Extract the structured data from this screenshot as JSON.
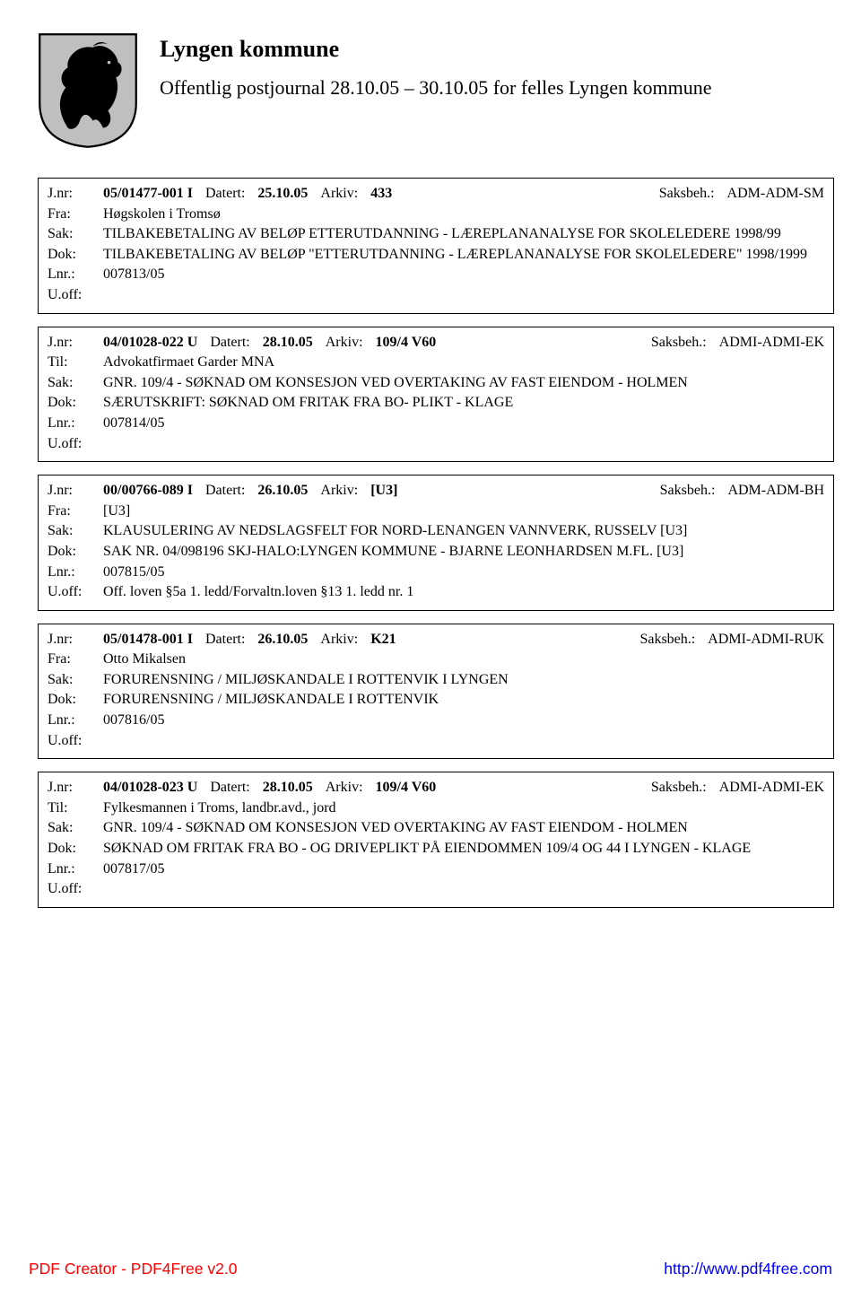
{
  "header": {
    "title": "Lyngen kommune",
    "subtitle": "Offentlig postjournal 28.10.05 – 30.10.05 for felles Lyngen kommune"
  },
  "labels": {
    "jnr": "J.nr:",
    "datert": "Datert:",
    "arkiv": "Arkiv:",
    "saksbeh": "Saksbeh.:",
    "fra": "Fra:",
    "til": "Til:",
    "sak": "Sak:",
    "dok": "Dok:",
    "lnr": "Lnr.:",
    "uoff": "U.off:"
  },
  "entries": [
    {
      "jnr": "05/01477-001 I",
      "datert": "25.10.05",
      "arkiv": "433",
      "saksbeh": "ADM-ADM-SM",
      "party_label_key": "fra",
      "party": "Høgskolen i Tromsø",
      "sak": "TILBAKEBETALING AV BELØP ETTERUTDANNING - LÆREPLANANALYSE FOR SKOLELEDERE 1998/99",
      "dok": "TILBAKEBETALING AV BELØP \"ETTERUTDANNING - LÆREPLANANALYSE FOR SKOLELEDERE\" 1998/1999",
      "lnr": "007813/05",
      "uoff": ""
    },
    {
      "jnr": "04/01028-022 U",
      "datert": "28.10.05",
      "arkiv": "109/4 V60",
      "saksbeh": "ADMI-ADMI-EK",
      "party_label_key": "til",
      "party": "Advokatfirmaet Garder MNA",
      "sak": "GNR. 109/4 - SØKNAD OM KONSESJON VED OVERTAKING AV FAST EIENDOM  - HOLMEN",
      "dok": "SÆRUTSKRIFT: SØKNAD OM FRITAK FRA BO- PLIKT - KLAGE",
      "lnr": "007814/05",
      "uoff": ""
    },
    {
      "jnr": "00/00766-089 I",
      "datert": "26.10.05",
      "arkiv": "[U3]",
      "saksbeh": "ADM-ADM-BH",
      "party_label_key": "fra",
      "party": "[U3]",
      "sak": "KLAUSULERING AV NEDSLAGSFELT FOR NORD-LENANGEN VANNVERK, RUSSELV [U3]",
      "dok": "SAK NR. 04/098196 SKJ-HALO:LYNGEN KOMMUNE - BJARNE LEONHARDSEN M.FL. [U3]",
      "lnr": "007815/05",
      "uoff": "Off. loven §5a 1. ledd/Forvaltn.loven §13 1. ledd nr. 1"
    },
    {
      "jnr": "05/01478-001 I",
      "datert": "26.10.05",
      "arkiv": "K21",
      "saksbeh": "ADMI-ADMI-RUK",
      "party_label_key": "fra",
      "party": "Otto Mikalsen",
      "sak": "FORURENSNING / MILJØSKANDALE I ROTTENVIK I LYNGEN",
      "dok": "FORURENSNING / MILJØSKANDALE I ROTTENVIK",
      "lnr": "007816/05",
      "uoff": ""
    },
    {
      "jnr": "04/01028-023 U",
      "datert": "28.10.05",
      "arkiv": "109/4 V60",
      "saksbeh": "ADMI-ADMI-EK",
      "party_label_key": "til",
      "party": "Fylkesmannen i Troms, landbr.avd., jord",
      "sak": "GNR. 109/4 - SØKNAD OM KONSESJON VED OVERTAKING AV FAST EIENDOM  - HOLMEN",
      "dok": "SØKNAD OM FRITAK FRA BO - OG DRIVEPLIKT PÅ EIENDOMMEN 109/4 OG 44 I LYNGEN - KLAGE",
      "lnr": "007817/05",
      "uoff": ""
    }
  ],
  "footer": {
    "left": "PDF Creator - PDF4Free v2.0",
    "right": "http://www.pdf4free.com"
  },
  "footer_colors": {
    "left": "#ff0000",
    "right": "#0000ff"
  }
}
